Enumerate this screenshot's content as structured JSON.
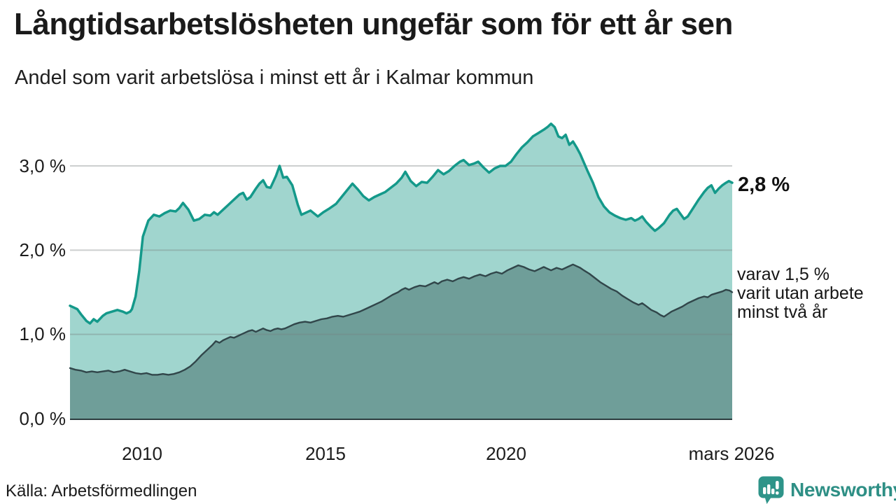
{
  "header": {
    "title": "Långtidsarbetslösheten ungefär som för ett år sen",
    "subtitle": "Andel som varit arbetslösa i minst ett år i Kalmar kommun"
  },
  "chart_data": {
    "type": "area",
    "title": "Långtidsarbetslösheten ungefär som för ett år sen",
    "subtitle": "Andel som varit arbetslösa i minst ett år i Kalmar kommun",
    "unit": "%",
    "grid": "horizontal",
    "legend_position": "none",
    "x_axis": {
      "range_years": [
        2008.0,
        2026.17
      ],
      "tick_labels": [
        "2010",
        "2015",
        "2020",
        "mars 2026"
      ],
      "tick_years": [
        2010,
        2015,
        2020,
        2026.17
      ]
    },
    "y_axis": {
      "range": [
        0,
        3.6
      ],
      "tick_labels": [
        "0,0 %",
        "1,0 %",
        "2,0 %",
        "3,0 %"
      ],
      "tick_values": [
        0,
        1,
        2,
        3
      ],
      "gridline_values": [
        1,
        2,
        3
      ]
    },
    "series": [
      {
        "name": "Andel arbetslösa minst ett år",
        "line_color": "#14998a",
        "fill_color": "#a0d5ce",
        "line_width": 3.5,
        "latest_label": "2,8 %",
        "points": [
          [
            2008.0,
            1.34
          ],
          [
            2008.1,
            1.32
          ],
          [
            2008.2,
            1.3
          ],
          [
            2008.3,
            1.24
          ],
          [
            2008.45,
            1.16
          ],
          [
            2008.55,
            1.13
          ],
          [
            2008.65,
            1.18
          ],
          [
            2008.75,
            1.15
          ],
          [
            2008.9,
            1.22
          ],
          [
            2009.0,
            1.25
          ],
          [
            2009.15,
            1.27
          ],
          [
            2009.3,
            1.29
          ],
          [
            2009.45,
            1.27
          ],
          [
            2009.55,
            1.25
          ],
          [
            2009.65,
            1.27
          ],
          [
            2009.7,
            1.3
          ],
          [
            2009.8,
            1.45
          ],
          [
            2009.9,
            1.75
          ],
          [
            2010.0,
            2.16
          ],
          [
            2010.15,
            2.35
          ],
          [
            2010.3,
            2.42
          ],
          [
            2010.45,
            2.4
          ],
          [
            2010.6,
            2.44
          ],
          [
            2010.75,
            2.47
          ],
          [
            2010.9,
            2.46
          ],
          [
            2011.0,
            2.5
          ],
          [
            2011.1,
            2.56
          ],
          [
            2011.25,
            2.48
          ],
          [
            2011.4,
            2.35
          ],
          [
            2011.55,
            2.37
          ],
          [
            2011.7,
            2.42
          ],
          [
            2011.85,
            2.41
          ],
          [
            2011.95,
            2.45
          ],
          [
            2012.05,
            2.42
          ],
          [
            2012.15,
            2.46
          ],
          [
            2012.25,
            2.5
          ],
          [
            2012.35,
            2.54
          ],
          [
            2012.45,
            2.58
          ],
          [
            2012.55,
            2.62
          ],
          [
            2012.65,
            2.66
          ],
          [
            2012.75,
            2.68
          ],
          [
            2012.85,
            2.6
          ],
          [
            2012.95,
            2.63
          ],
          [
            2013.1,
            2.73
          ],
          [
            2013.2,
            2.79
          ],
          [
            2013.3,
            2.83
          ],
          [
            2013.4,
            2.75
          ],
          [
            2013.5,
            2.74
          ],
          [
            2013.65,
            2.88
          ],
          [
            2013.75,
            3.0
          ],
          [
            2013.85,
            2.86
          ],
          [
            2013.95,
            2.87
          ],
          [
            2014.1,
            2.77
          ],
          [
            2014.25,
            2.54
          ],
          [
            2014.35,
            2.42
          ],
          [
            2014.5,
            2.45
          ],
          [
            2014.6,
            2.47
          ],
          [
            2014.8,
            2.4
          ],
          [
            2014.95,
            2.45
          ],
          [
            2015.1,
            2.49
          ],
          [
            2015.3,
            2.55
          ],
          [
            2015.45,
            2.63
          ],
          [
            2015.6,
            2.71
          ],
          [
            2015.75,
            2.79
          ],
          [
            2015.9,
            2.72
          ],
          [
            2016.05,
            2.64
          ],
          [
            2016.2,
            2.59
          ],
          [
            2016.35,
            2.63
          ],
          [
            2016.5,
            2.66
          ],
          [
            2016.65,
            2.69
          ],
          [
            2016.8,
            2.74
          ],
          [
            2016.95,
            2.79
          ],
          [
            2017.1,
            2.86
          ],
          [
            2017.2,
            2.93
          ],
          [
            2017.35,
            2.82
          ],
          [
            2017.5,
            2.76
          ],
          [
            2017.65,
            2.81
          ],
          [
            2017.8,
            2.8
          ],
          [
            2017.95,
            2.87
          ],
          [
            2018.1,
            2.95
          ],
          [
            2018.25,
            2.9
          ],
          [
            2018.4,
            2.94
          ],
          [
            2018.55,
            3.0
          ],
          [
            2018.7,
            3.05
          ],
          [
            2018.8,
            3.07
          ],
          [
            2018.95,
            3.01
          ],
          [
            2019.1,
            3.03
          ],
          [
            2019.2,
            3.05
          ],
          [
            2019.35,
            2.98
          ],
          [
            2019.5,
            2.92
          ],
          [
            2019.65,
            2.97
          ],
          [
            2019.8,
            3.0
          ],
          [
            2019.95,
            3.0
          ],
          [
            2020.1,
            3.05
          ],
          [
            2020.25,
            3.14
          ],
          [
            2020.4,
            3.22
          ],
          [
            2020.55,
            3.28
          ],
          [
            2020.7,
            3.35
          ],
          [
            2020.85,
            3.39
          ],
          [
            2021.0,
            3.43
          ],
          [
            2021.1,
            3.46
          ],
          [
            2021.2,
            3.5
          ],
          [
            2021.3,
            3.46
          ],
          [
            2021.4,
            3.35
          ],
          [
            2021.5,
            3.33
          ],
          [
            2021.6,
            3.37
          ],
          [
            2021.7,
            3.25
          ],
          [
            2021.8,
            3.29
          ],
          [
            2021.9,
            3.22
          ],
          [
            2022.0,
            3.14
          ],
          [
            2022.1,
            3.04
          ],
          [
            2022.2,
            2.94
          ],
          [
            2022.35,
            2.8
          ],
          [
            2022.5,
            2.63
          ],
          [
            2022.65,
            2.52
          ],
          [
            2022.8,
            2.45
          ],
          [
            2022.95,
            2.41
          ],
          [
            2023.1,
            2.38
          ],
          [
            2023.25,
            2.36
          ],
          [
            2023.4,
            2.38
          ],
          [
            2023.5,
            2.35
          ],
          [
            2023.6,
            2.37
          ],
          [
            2023.7,
            2.4
          ],
          [
            2023.8,
            2.34
          ],
          [
            2023.95,
            2.27
          ],
          [
            2024.05,
            2.23
          ],
          [
            2024.15,
            2.26
          ],
          [
            2024.3,
            2.32
          ],
          [
            2024.45,
            2.42
          ],
          [
            2024.55,
            2.47
          ],
          [
            2024.65,
            2.49
          ],
          [
            2024.75,
            2.43
          ],
          [
            2024.85,
            2.37
          ],
          [
            2024.95,
            2.4
          ],
          [
            2025.1,
            2.5
          ],
          [
            2025.25,
            2.6
          ],
          [
            2025.4,
            2.69
          ],
          [
            2025.5,
            2.74
          ],
          [
            2025.6,
            2.77
          ],
          [
            2025.7,
            2.68
          ],
          [
            2025.8,
            2.73
          ],
          [
            2025.9,
            2.77
          ],
          [
            2026.0,
            2.8
          ],
          [
            2026.08,
            2.82
          ],
          [
            2026.17,
            2.8
          ]
        ]
      },
      {
        "name": "varav utan arbete minst två år",
        "line_color": "#31464a",
        "fill_color": "#6f9e99",
        "line_width": 2.4,
        "latest_label": "1,5 %",
        "points": [
          [
            2008.0,
            0.6
          ],
          [
            2008.15,
            0.58
          ],
          [
            2008.3,
            0.57
          ],
          [
            2008.45,
            0.55
          ],
          [
            2008.6,
            0.56
          ],
          [
            2008.75,
            0.55
          ],
          [
            2008.9,
            0.56
          ],
          [
            2009.05,
            0.57
          ],
          [
            2009.2,
            0.55
          ],
          [
            2009.35,
            0.56
          ],
          [
            2009.5,
            0.58
          ],
          [
            2009.65,
            0.56
          ],
          [
            2009.8,
            0.54
          ],
          [
            2009.95,
            0.53
          ],
          [
            2010.1,
            0.54
          ],
          [
            2010.25,
            0.52
          ],
          [
            2010.4,
            0.52
          ],
          [
            2010.55,
            0.53
          ],
          [
            2010.7,
            0.52
          ],
          [
            2010.85,
            0.53
          ],
          [
            2011.0,
            0.55
          ],
          [
            2011.15,
            0.58
          ],
          [
            2011.3,
            0.62
          ],
          [
            2011.45,
            0.68
          ],
          [
            2011.6,
            0.75
          ],
          [
            2011.75,
            0.81
          ],
          [
            2011.9,
            0.87
          ],
          [
            2012.0,
            0.92
          ],
          [
            2012.1,
            0.9
          ],
          [
            2012.2,
            0.93
          ],
          [
            2012.3,
            0.95
          ],
          [
            2012.4,
            0.97
          ],
          [
            2012.5,
            0.96
          ],
          [
            2012.6,
            0.98
          ],
          [
            2012.7,
            1.0
          ],
          [
            2012.8,
            1.02
          ],
          [
            2012.9,
            1.04
          ],
          [
            2013.0,
            1.05
          ],
          [
            2013.1,
            1.03
          ],
          [
            2013.2,
            1.05
          ],
          [
            2013.3,
            1.07
          ],
          [
            2013.4,
            1.05
          ],
          [
            2013.5,
            1.04
          ],
          [
            2013.6,
            1.06
          ],
          [
            2013.7,
            1.07
          ],
          [
            2013.8,
            1.06
          ],
          [
            2013.9,
            1.07
          ],
          [
            2014.0,
            1.09
          ],
          [
            2014.15,
            1.12
          ],
          [
            2014.3,
            1.14
          ],
          [
            2014.45,
            1.15
          ],
          [
            2014.6,
            1.14
          ],
          [
            2014.75,
            1.16
          ],
          [
            2014.9,
            1.18
          ],
          [
            2015.05,
            1.19
          ],
          [
            2015.2,
            1.21
          ],
          [
            2015.35,
            1.22
          ],
          [
            2015.5,
            1.21
          ],
          [
            2015.65,
            1.23
          ],
          [
            2015.8,
            1.25
          ],
          [
            2015.95,
            1.27
          ],
          [
            2016.1,
            1.3
          ],
          [
            2016.25,
            1.33
          ],
          [
            2016.4,
            1.36
          ],
          [
            2016.55,
            1.39
          ],
          [
            2016.7,
            1.43
          ],
          [
            2016.85,
            1.47
          ],
          [
            2017.0,
            1.5
          ],
          [
            2017.1,
            1.53
          ],
          [
            2017.2,
            1.55
          ],
          [
            2017.3,
            1.53
          ],
          [
            2017.45,
            1.56
          ],
          [
            2017.6,
            1.58
          ],
          [
            2017.75,
            1.57
          ],
          [
            2017.9,
            1.6
          ],
          [
            2018.0,
            1.62
          ],
          [
            2018.1,
            1.6
          ],
          [
            2018.2,
            1.63
          ],
          [
            2018.35,
            1.65
          ],
          [
            2018.5,
            1.63
          ],
          [
            2018.65,
            1.66
          ],
          [
            2018.8,
            1.68
          ],
          [
            2018.95,
            1.66
          ],
          [
            2019.1,
            1.69
          ],
          [
            2019.25,
            1.71
          ],
          [
            2019.4,
            1.69
          ],
          [
            2019.55,
            1.72
          ],
          [
            2019.7,
            1.74
          ],
          [
            2019.85,
            1.72
          ],
          [
            2020.0,
            1.76
          ],
          [
            2020.15,
            1.79
          ],
          [
            2020.3,
            1.82
          ],
          [
            2020.45,
            1.8
          ],
          [
            2020.6,
            1.77
          ],
          [
            2020.75,
            1.75
          ],
          [
            2020.9,
            1.78
          ],
          [
            2021.0,
            1.8
          ],
          [
            2021.1,
            1.78
          ],
          [
            2021.2,
            1.76
          ],
          [
            2021.35,
            1.79
          ],
          [
            2021.5,
            1.77
          ],
          [
            2021.65,
            1.8
          ],
          [
            2021.8,
            1.83
          ],
          [
            2021.9,
            1.81
          ],
          [
            2022.0,
            1.79
          ],
          [
            2022.1,
            1.76
          ],
          [
            2022.25,
            1.72
          ],
          [
            2022.4,
            1.67
          ],
          [
            2022.55,
            1.62
          ],
          [
            2022.7,
            1.58
          ],
          [
            2022.85,
            1.54
          ],
          [
            2023.0,
            1.51
          ],
          [
            2023.15,
            1.46
          ],
          [
            2023.3,
            1.42
          ],
          [
            2023.45,
            1.38
          ],
          [
            2023.6,
            1.35
          ],
          [
            2023.7,
            1.37
          ],
          [
            2023.8,
            1.34
          ],
          [
            2023.95,
            1.29
          ],
          [
            2024.1,
            1.26
          ],
          [
            2024.2,
            1.23
          ],
          [
            2024.3,
            1.21
          ],
          [
            2024.4,
            1.24
          ],
          [
            2024.5,
            1.27
          ],
          [
            2024.65,
            1.3
          ],
          [
            2024.8,
            1.33
          ],
          [
            2024.95,
            1.37
          ],
          [
            2025.1,
            1.4
          ],
          [
            2025.25,
            1.43
          ],
          [
            2025.4,
            1.45
          ],
          [
            2025.5,
            1.44
          ],
          [
            2025.6,
            1.47
          ],
          [
            2025.75,
            1.49
          ],
          [
            2025.9,
            1.51
          ],
          [
            2026.0,
            1.53
          ],
          [
            2026.1,
            1.52
          ],
          [
            2026.17,
            1.5
          ]
        ]
      }
    ],
    "annotations": {
      "latest_value": "2,8 %",
      "secondary_line1": "varav 1,5 %",
      "secondary_line2": "varit utan arbete",
      "secondary_line3": "minst två år"
    },
    "colors": {
      "gridline": "#d3d7d6",
      "axis_line": "#2c3c3f",
      "text": "#1c1c1c"
    }
  },
  "footer": {
    "source": "Källa: Arbetsförmedlingen",
    "brand_name": "Newsworthy",
    "brand_color": "#2e8f85"
  }
}
